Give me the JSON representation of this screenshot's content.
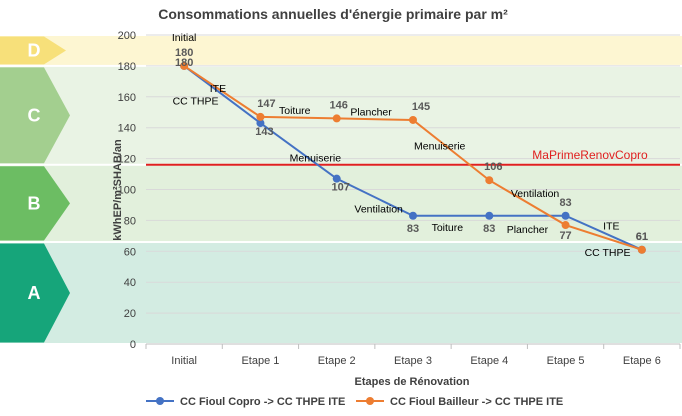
{
  "chart_data": {
    "type": "line",
    "title": "Consommations annuelles d'énergie primaire par m²",
    "xlabel": "Etapes de Rénovation",
    "ylabel": "kWhEP/m²SHAB/an",
    "ylim": [
      0,
      200
    ],
    "yticks": [
      0,
      20,
      40,
      60,
      80,
      100,
      120,
      140,
      160,
      180,
      200
    ],
    "categories": [
      "Initial",
      "Etape 1",
      "Etape 2",
      "Etape 3",
      "Etape 4",
      "Etape 5",
      "Etape 6"
    ],
    "series": [
      {
        "name": "CC Fioul Copro -> CC THPE ITE",
        "color": "#4472c4",
        "values": [
          180,
          143,
          107,
          83,
          83,
          83,
          61
        ],
        "labels": [
          "180",
          "143",
          "107",
          "83",
          "83",
          "83",
          "61"
        ]
      },
      {
        "name": "CC Fioul Bailleur -> CC THPE ITE",
        "color": "#ed7d31",
        "values": [
          180,
          147,
          146,
          145,
          106,
          77,
          61
        ],
        "labels": [
          "",
          "147",
          "146",
          "145",
          "106",
          "77",
          ""
        ]
      }
    ],
    "reference_line": {
      "value": 116,
      "label": "MaPrimeRenovCopro",
      "color": "#e02020"
    },
    "energy_bands": [
      {
        "letter": "D",
        "from": 180,
        "to": 200,
        "color": "#f7e07a",
        "bg": "#fdf6d2"
      },
      {
        "letter": "C",
        "from": 116,
        "to": 180,
        "color": "#a3cf8f",
        "bg": "#e9f3e4"
      },
      {
        "letter": "B",
        "from": 66,
        "to": 116,
        "color": "#6cbd63",
        "bg": "#e2f0dc"
      },
      {
        "letter": "A",
        "from": 0,
        "to": 66,
        "color": "#16a57a",
        "bg": "#d3ece2"
      }
    ],
    "annotations": [
      {
        "text": "Initial",
        "x": 0,
        "y": 186,
        "pos": "above"
      },
      {
        "text": "ITE",
        "x": 0.55,
        "y": 163,
        "pos": "left"
      },
      {
        "text": "CC THPE",
        "x": 0.45,
        "y": 155,
        "pos": "left"
      },
      {
        "text": "Toiture",
        "x": 1.45,
        "y": 149,
        "pos": "center"
      },
      {
        "text": "Plancher",
        "x": 2.45,
        "y": 148,
        "pos": "center"
      },
      {
        "text": "Menuiserie",
        "x": 1.72,
        "y": 118,
        "pos": "center"
      },
      {
        "text": "Menuiserie",
        "x": 3.35,
        "y": 126,
        "pos": "center"
      },
      {
        "text": "Ventilation",
        "x": 2.55,
        "y": 85,
        "pos": "center"
      },
      {
        "text": "Toiture",
        "x": 3.45,
        "y": 73,
        "pos": "center"
      },
      {
        "text": "Ventilation",
        "x": 4.6,
        "y": 95,
        "pos": "center"
      },
      {
        "text": "Plancher",
        "x": 4.5,
        "y": 72,
        "pos": "center"
      },
      {
        "text": "ITE",
        "x": 5.6,
        "y": 74,
        "pos": "center"
      },
      {
        "text": "CC THPE",
        "x": 5.55,
        "y": 57,
        "pos": "center"
      }
    ],
    "grid": true,
    "legend": "bottom"
  }
}
